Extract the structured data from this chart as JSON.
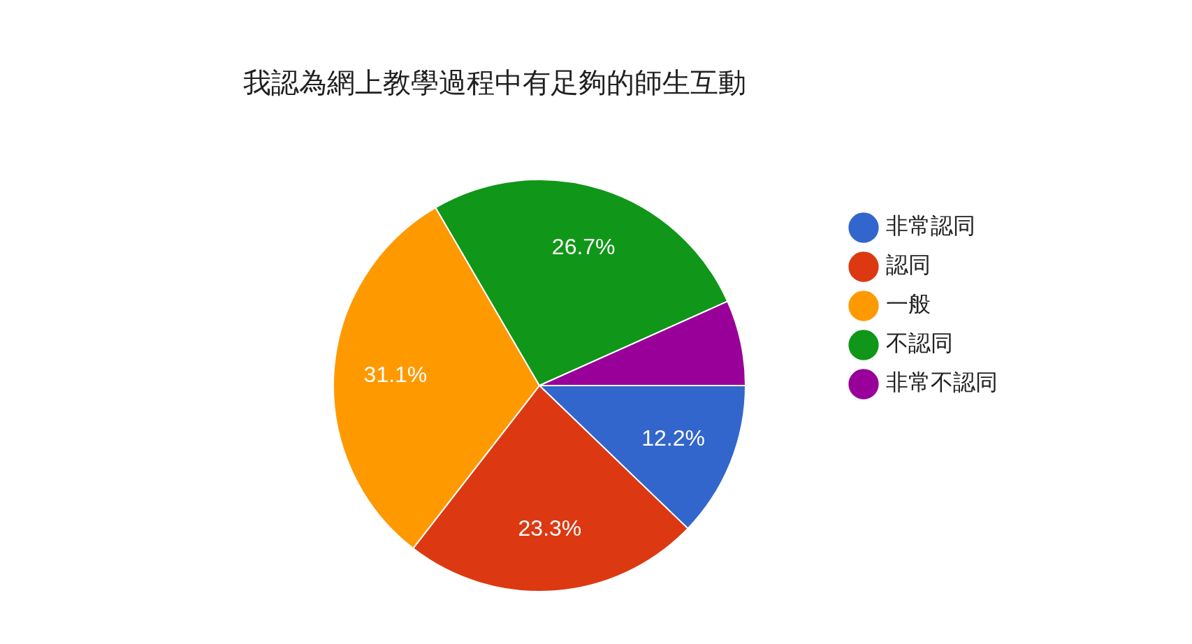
{
  "chart_data": {
    "type": "pie",
    "title": "我認為網上教學過程中有足夠的師生互動",
    "categories": [
      "非常認同",
      "認同",
      "一般",
      "不認同",
      "非常不認同"
    ],
    "values": [
      12.2,
      23.3,
      31.1,
      26.7,
      6.7
    ],
    "colors": [
      "#3366cc",
      "#dc3912",
      "#ff9900",
      "#109618",
      "#990099"
    ],
    "value_labels": [
      "12.2%",
      "23.3%",
      "31.1%",
      "26.7%",
      null
    ],
    "legend": "right"
  }
}
